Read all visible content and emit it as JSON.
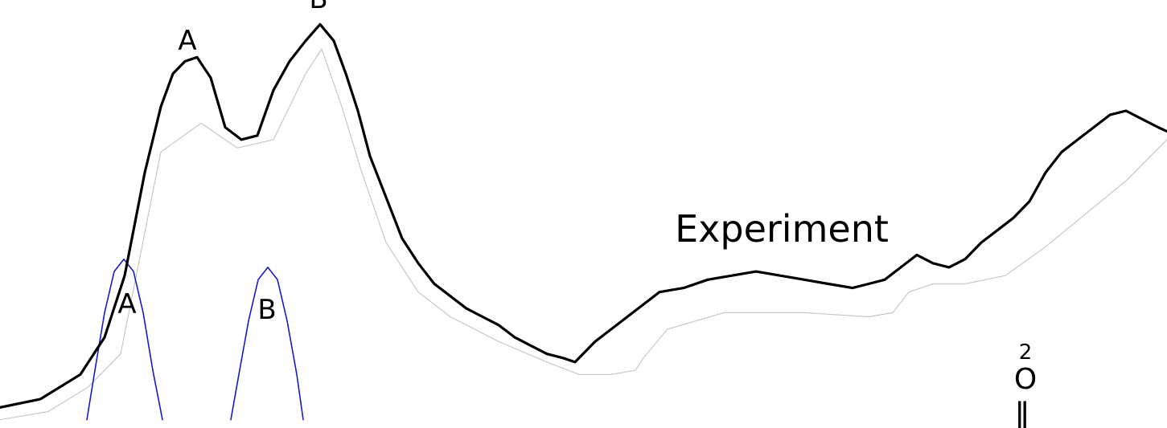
{
  "chart_data": {
    "type": "line",
    "series": [
      {
        "name": "Experiment",
        "color": "#000000",
        "x": [
          0,
          50,
          100,
          130,
          155,
          180,
          200,
          215,
          230,
          245,
          262,
          280,
          300,
          320,
          340,
          360,
          380,
          398,
          415,
          430,
          445,
          460,
          480,
          500,
          520,
          540,
          560,
          580,
          600,
          620,
          640,
          660,
          680,
          700,
          715,
          740,
          760,
          780,
          800,
          820,
          850,
          880,
          910,
          940,
          970,
          1000,
          1030,
          1060,
          1080,
          1100,
          1120,
          1140,
          1160,
          1180,
          1200,
          1220,
          1240,
          1260,
          1280,
          1300,
          1320,
          1340,
          1360,
          1380,
          1400,
          1420,
          1440,
          1451
        ],
        "y": [
          0.05,
          0.07,
          0.13,
          0.22,
          0.37,
          0.62,
          0.78,
          0.86,
          0.89,
          0.9,
          0.85,
          0.73,
          0.7,
          0.71,
          0.82,
          0.89,
          0.94,
          0.98,
          0.94,
          0.86,
          0.77,
          0.66,
          0.56,
          0.46,
          0.4,
          0.35,
          0.32,
          0.29,
          0.27,
          0.25,
          0.22,
          0.2,
          0.18,
          0.17,
          0.16,
          0.21,
          0.24,
          0.27,
          0.3,
          0.33,
          0.34,
          0.36,
          0.37,
          0.38,
          0.37,
          0.36,
          0.35,
          0.34,
          0.35,
          0.36,
          0.39,
          0.42,
          0.4,
          0.39,
          0.41,
          0.45,
          0.48,
          0.51,
          0.55,
          0.62,
          0.67,
          0.7,
          0.73,
          0.76,
          0.77,
          0.75,
          0.73,
          0.72
        ]
      },
      {
        "color": "#c8c8c8",
        "x": [
          0,
          60,
          110,
          150,
          200,
          250,
          295,
          340,
          380,
          400,
          425,
          450,
          480,
          520,
          560,
          620,
          680,
          720,
          760,
          790,
          800,
          830,
          900,
          1000,
          1080,
          1110,
          1130,
          1160,
          1200,
          1250,
          1300,
          1350,
          1400,
          1451
        ],
        "y": [
          0.02,
          0.04,
          0.1,
          0.18,
          0.67,
          0.74,
          0.68,
          0.7,
          0.86,
          0.92,
          0.78,
          0.62,
          0.45,
          0.33,
          0.27,
          0.21,
          0.16,
          0.13,
          0.13,
          0.14,
          0.17,
          0.24,
          0.28,
          0.28,
          0.27,
          0.28,
          0.33,
          0.35,
          0.35,
          0.37,
          0.44,
          0.52,
          0.6,
          0.7
        ]
      },
      {
        "color": "#1a1acc",
        "x": [
          108,
          118,
          130,
          142,
          154,
          166,
          178,
          190,
          202
        ],
        "y": [
          0.02,
          0.14,
          0.28,
          0.38,
          0.41,
          0.38,
          0.28,
          0.14,
          0.02
        ]
      },
      {
        "color": "#1a1acc",
        "x": [
          287,
          297,
          309,
          321,
          333,
          345,
          357,
          369,
          377
        ],
        "y": [
          0.02,
          0.13,
          0.26,
          0.36,
          0.39,
          0.36,
          0.26,
          0.13,
          0.02
        ]
      }
    ],
    "annotations": [
      {
        "text": "A",
        "x": 233,
        "y": 0.92
      },
      {
        "text": "B",
        "x": 396,
        "y": 1.01
      },
      {
        "text": "Experiment",
        "x": 972,
        "y": 0.47
      },
      {
        "text": "A",
        "x": 158,
        "y": 0.3
      },
      {
        "text": "B",
        "x": 332,
        "y": 0.29
      }
    ],
    "side_labels": [
      "2",
      "O",
      "‖"
    ],
    "xlim": [
      0,
      1451
    ],
    "ylim": [
      0,
      1
    ],
    "grid": false
  }
}
